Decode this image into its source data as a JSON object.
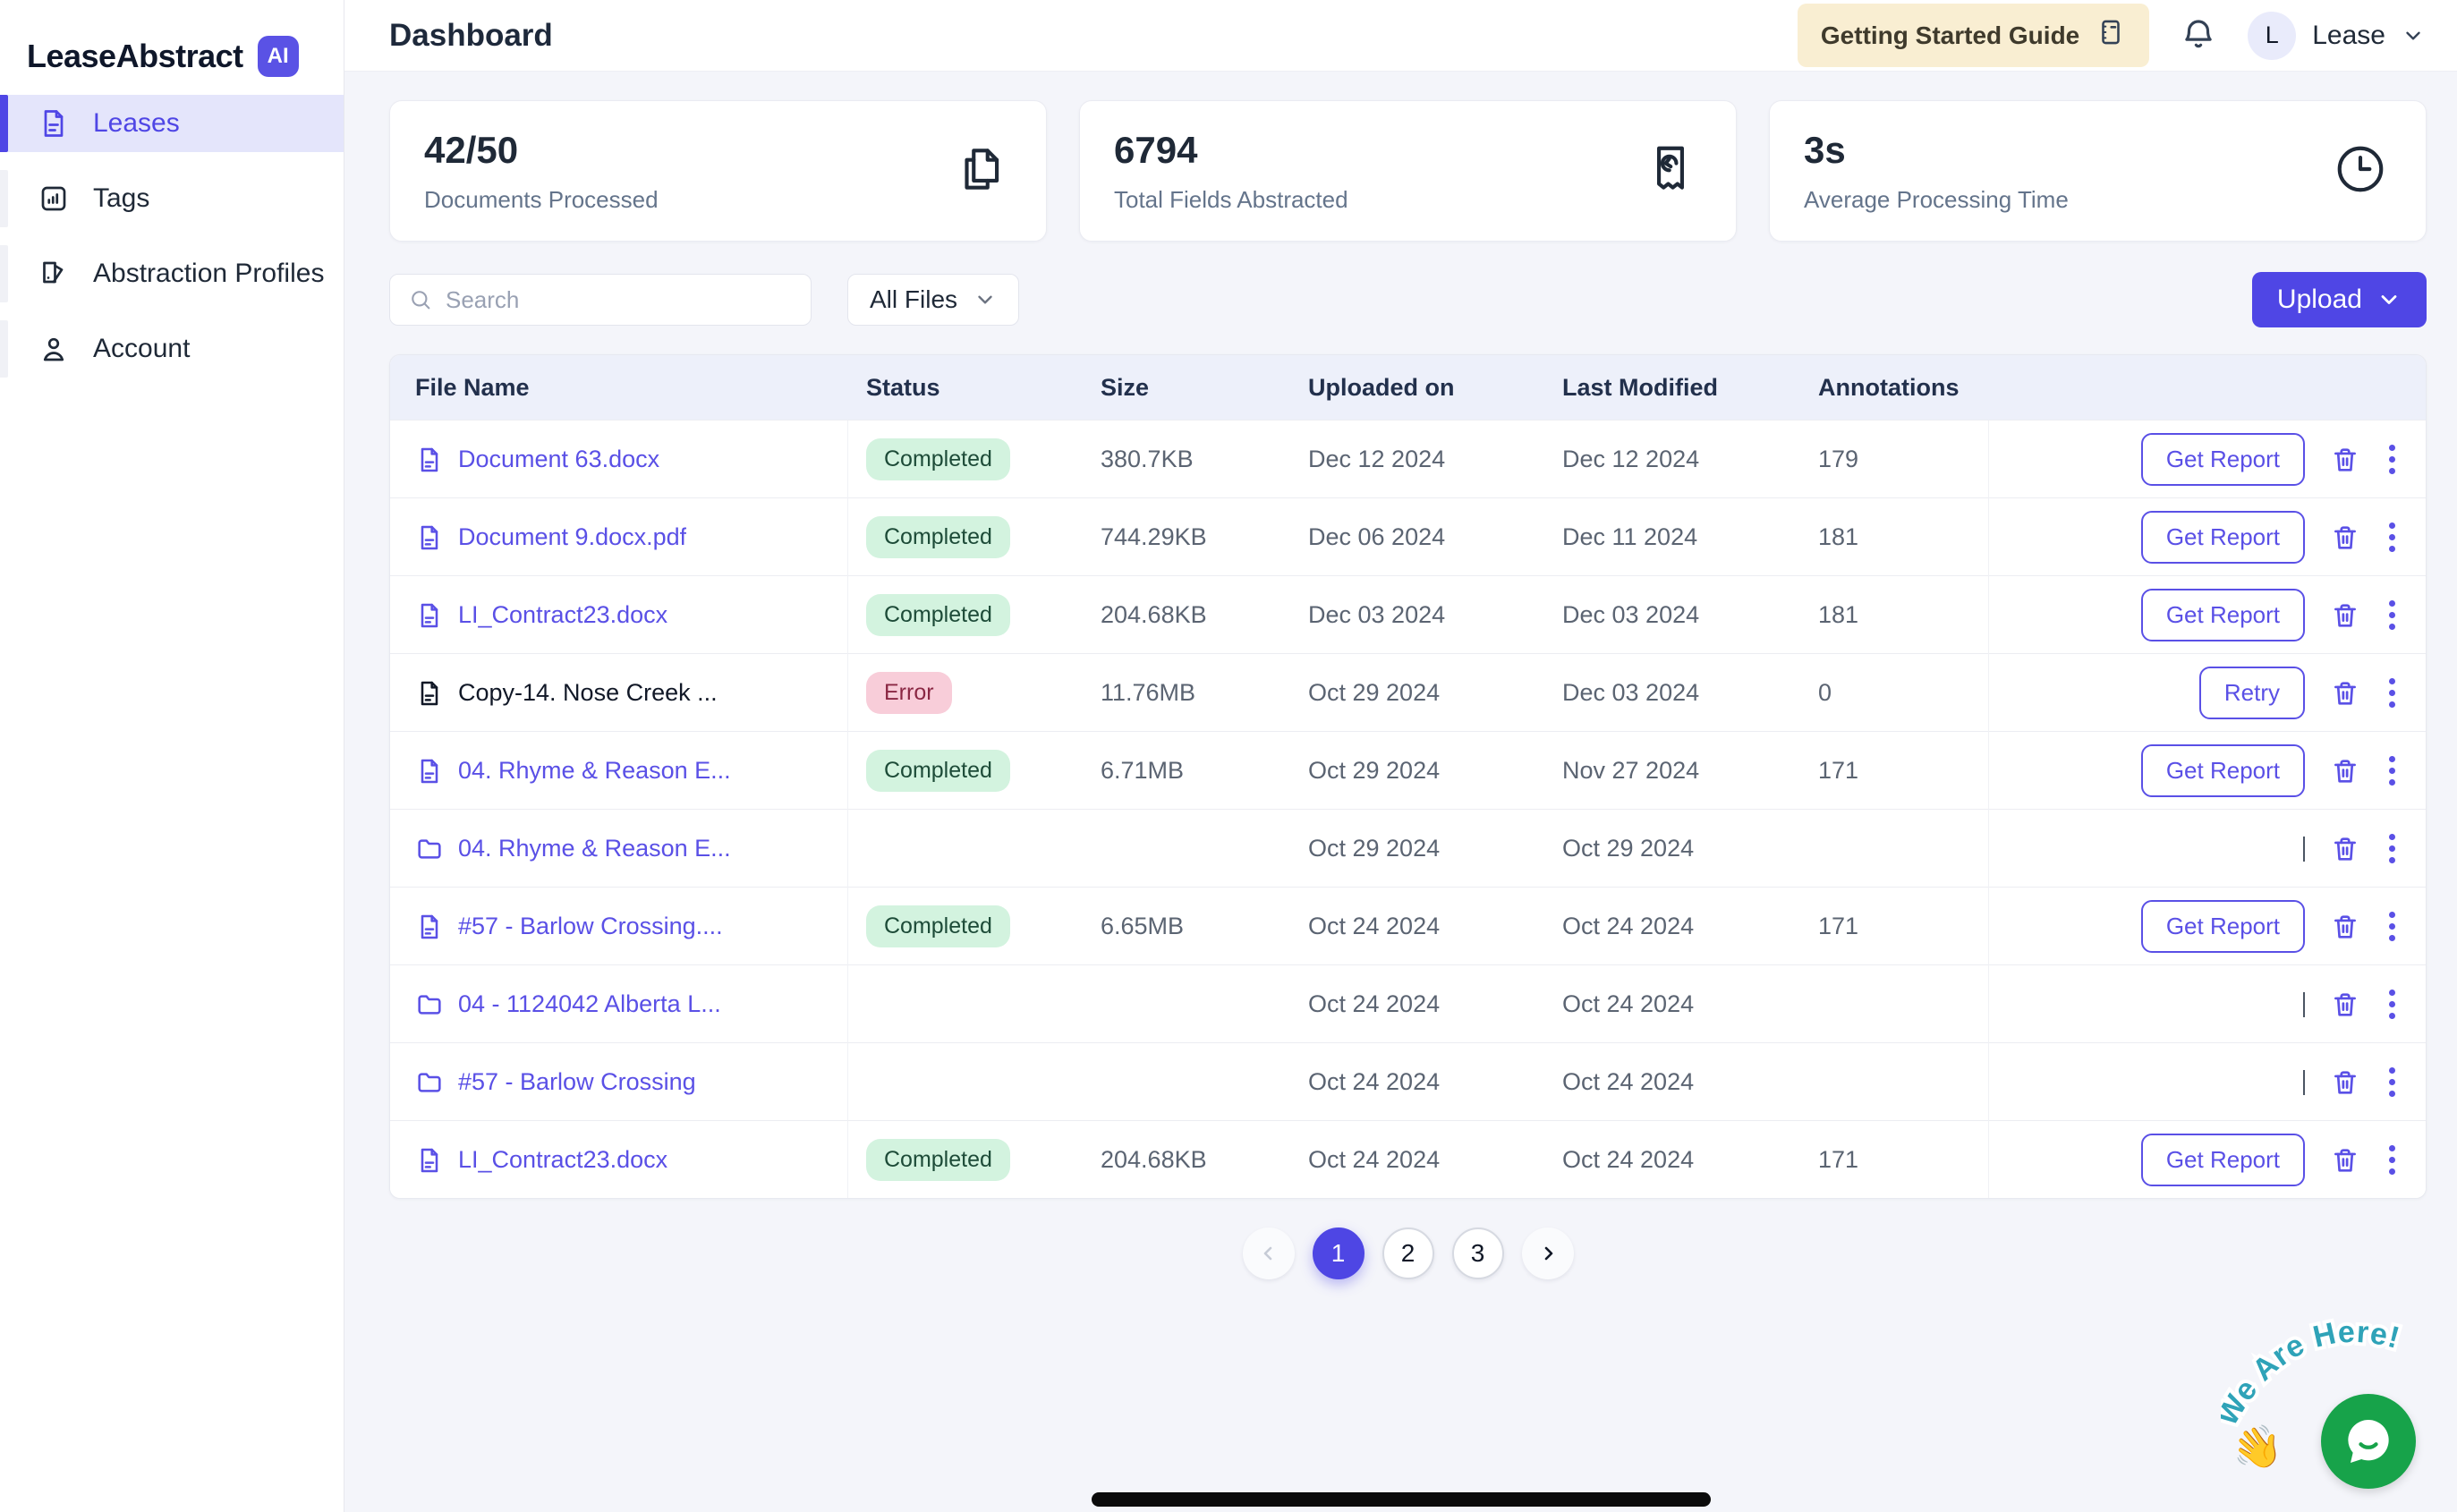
{
  "brand": {
    "name": "LeaseAbstract",
    "badge": "AI"
  },
  "sidebar": {
    "items": [
      {
        "label": "Leases",
        "icon": "file-lines-icon",
        "active": true
      },
      {
        "label": "Tags",
        "icon": "bar-chart-icon",
        "active": false
      },
      {
        "label": "Abstraction Profiles",
        "icon": "profiles-icon",
        "active": false
      },
      {
        "label": "Account",
        "icon": "person-icon",
        "active": false
      }
    ]
  },
  "header": {
    "title": "Dashboard",
    "guide_button_label": "Getting Started Guide",
    "user_initial": "L",
    "user_name": "Lease"
  },
  "stats": [
    {
      "value": "42/50",
      "label": "Documents Processed",
      "icon": "documents-icon"
    },
    {
      "value": "6794",
      "label": "Total Fields Abstracted",
      "icon": "receipt-icon"
    },
    {
      "value": "3s",
      "label": "Average Processing Time",
      "icon": "clock-icon"
    }
  ],
  "toolbar": {
    "search_placeholder": "Search",
    "filter_value": "All Files",
    "upload_label": "Upload"
  },
  "table": {
    "columns": [
      "File Name",
      "Status",
      "Size",
      "Uploaded on",
      "Last Modified",
      "Annotations"
    ],
    "rows": [
      {
        "name": "Document 63.docx",
        "kind": "file",
        "link": true,
        "status": "Completed",
        "size": "380.7KB",
        "uploaded": "Dec 12 2024",
        "modified": "Dec 12 2024",
        "annotations": "179",
        "action": "Get Report"
      },
      {
        "name": "Document 9.docx.pdf",
        "kind": "file",
        "link": true,
        "status": "Completed",
        "size": "744.29KB",
        "uploaded": "Dec 06 2024",
        "modified": "Dec 11 2024",
        "annotations": "181",
        "action": "Get Report"
      },
      {
        "name": "LI_Contract23.docx",
        "kind": "file",
        "link": true,
        "status": "Completed",
        "size": "204.68KB",
        "uploaded": "Dec 03 2024",
        "modified": "Dec 03 2024",
        "annotations": "181",
        "action": "Get Report"
      },
      {
        "name": "Copy-14. Nose Creek ...",
        "kind": "file",
        "link": false,
        "status": "Error",
        "size": "11.76MB",
        "uploaded": "Oct 29 2024",
        "modified": "Dec 03 2024",
        "annotations": "0",
        "action": "Retry"
      },
      {
        "name": "04. Rhyme & Reason E...",
        "kind": "file",
        "link": true,
        "status": "Completed",
        "size": "6.71MB",
        "uploaded": "Oct 29 2024",
        "modified": "Nov 27 2024",
        "annotations": "171",
        "action": "Get Report"
      },
      {
        "name": "04. Rhyme & Reason E...",
        "kind": "folder",
        "link": true,
        "status": "",
        "size": "",
        "uploaded": "Oct 29 2024",
        "modified": "Oct 29 2024",
        "annotations": "",
        "action": "divider"
      },
      {
        "name": "#57 - Barlow Crossing....",
        "kind": "file",
        "link": true,
        "status": "Completed",
        "size": "6.65MB",
        "uploaded": "Oct 24 2024",
        "modified": "Oct 24 2024",
        "annotations": "171",
        "action": "Get Report"
      },
      {
        "name": "04 - 1124042 Alberta L...",
        "kind": "folder",
        "link": true,
        "status": "",
        "size": "",
        "uploaded": "Oct 24 2024",
        "modified": "Oct 24 2024",
        "annotations": "",
        "action": "divider"
      },
      {
        "name": "#57 - Barlow Crossing",
        "kind": "folder",
        "link": true,
        "status": "",
        "size": "",
        "uploaded": "Oct 24 2024",
        "modified": "Oct 24 2024",
        "annotations": "",
        "action": "divider"
      },
      {
        "name": "LI_Contract23.docx",
        "kind": "file",
        "link": true,
        "status": "Completed",
        "size": "204.68KB",
        "uploaded": "Oct 24 2024",
        "modified": "Oct 24 2024",
        "annotations": "171",
        "action": "Get Report"
      }
    ]
  },
  "status_styles": {
    "Completed": {
      "bg": "#D3F3DF",
      "fg": "#1D4B38"
    },
    "Error": {
      "bg": "#F8CDD9",
      "fg": "#8A2743"
    }
  },
  "pagination": {
    "pages": [
      "1",
      "2",
      "3"
    ],
    "active": "1"
  },
  "chat": {
    "sticker_text": "We Are Here!",
    "wave_emoji": "👋",
    "bubble_color": "#17A34A"
  },
  "colors": {
    "accent": "#4F46E5",
    "link": "#5A50E6",
    "guide_bg": "#F9EED2",
    "header_row_bg": "#EDF0FA"
  }
}
